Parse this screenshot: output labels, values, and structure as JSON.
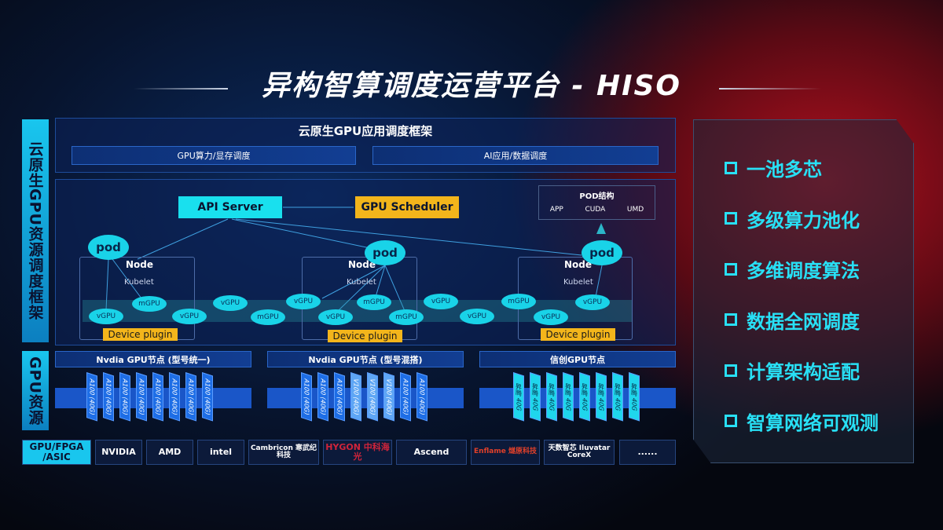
{
  "title": "异构智算调度运营平台 - HISO",
  "left_labels": {
    "framework": "云原生GPU资源调度框架",
    "resources": "GPU资源"
  },
  "top": {
    "title": "云原生GPU应用调度框架",
    "bars": [
      "GPU算力/显存调度",
      "AI应用/数据调度"
    ]
  },
  "control": {
    "api_server": "API Server",
    "gpu_scheduler": "GPU Scheduler",
    "pod_struct": {
      "title": "POD结构",
      "items": [
        "APP",
        "CUDA",
        "UMD"
      ]
    }
  },
  "nodes": [
    {
      "label": "Node",
      "kubelet": "Kubelet",
      "pod": "pod",
      "plugin": "Device plugin"
    },
    {
      "label": "Node",
      "kubelet": "Kubelet",
      "pod": "pod",
      "plugin": "Device plugin"
    },
    {
      "label": "Node",
      "kubelet": "Kubelet",
      "pod": "pod",
      "plugin": "Device plugin"
    }
  ],
  "gpu_units": [
    "vGPU",
    "mGPU",
    "vGPU",
    "vGPU",
    "mGPU",
    "vGPU",
    "vGPU",
    "mGPU",
    "mGPU",
    "vGPU",
    "vGPU",
    "mGPU",
    "vGPU",
    "vGPU"
  ],
  "gpu_nodes": [
    {
      "title": "Nvdia GPU节点 (型号统一)",
      "cards": [
        "A100 (40G)",
        "A100 (40G)",
        "A100 (40G)",
        "A100 (40G)",
        "A100 (40G)",
        "A100 (40G)",
        "A100 (40G)",
        "A100 (40G)"
      ]
    },
    {
      "title": "Nvdia GPU节点 (型号混搭)",
      "cards": [
        "A100 (40G)",
        "A100 (40G)",
        "A100 (40G)",
        "V100 (40G)",
        "V100 (40G)",
        "V100 (40G)",
        "A100 (40G)",
        "A100 (40G)"
      ]
    },
    {
      "title": "信创GPU节点",
      "cards": [
        "昇腾 40G",
        "昇腾 40G",
        "昇腾 40G",
        "昇腾 40G",
        "昇腾 40G",
        "昇腾 40G",
        "昇腾 40G",
        "昇腾 40G"
      ]
    }
  ],
  "vendors": {
    "label": "GPU/FPGA /ASIC",
    "items": [
      "NVIDIA",
      "AMD",
      "intel",
      "Cambricon 寒武纪科技",
      "HYGON 中科海光",
      "Ascend",
      "Enflame 燧原科技",
      "天数智芯 Iluvatar CoreX",
      "......"
    ]
  },
  "features": [
    "一池多芯",
    "多级算力池化",
    "多维调度算法",
    "数据全网调度",
    "计算架构适配",
    "智算网络可观测"
  ],
  "colors": {
    "cyan": "#19d3e8",
    "yellow": "#f3b51b",
    "blue": "#1e6ee6",
    "red": "#b0101e"
  }
}
